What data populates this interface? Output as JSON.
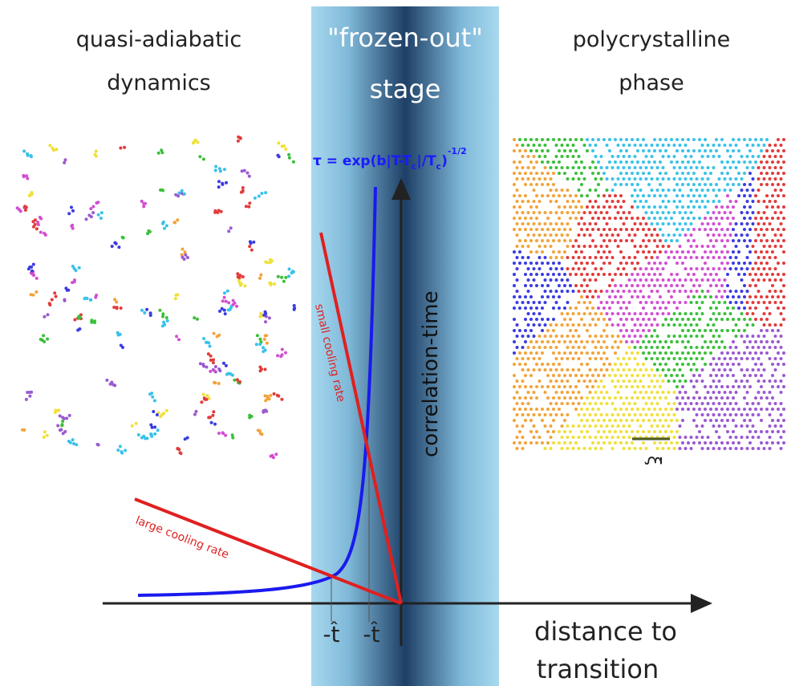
{
  "left_label": {
    "lines": [
      "quasi-adiabatic",
      "dynamics"
    ]
  },
  "center_label": {
    "lines": [
      "\"frozen-out\"",
      "stage"
    ]
  },
  "right_label": {
    "lines": [
      "polycrystalline",
      "phase"
    ]
  },
  "formula": {
    "parts": [
      "τ = exp(b|T-T",
      "c",
      "|/T",
      "c",
      ")",
      "-1/2"
    ]
  },
  "y_axis_label": "correlation-time",
  "x_axis_label": {
    "lines": [
      "distance to",
      "transition"
    ]
  },
  "curves": {
    "small": "small cooling rate",
    "large": "large cooling rate"
  },
  "markers": [
    "-t̂",
    "-t̂"
  ],
  "xi": "ξ"
}
